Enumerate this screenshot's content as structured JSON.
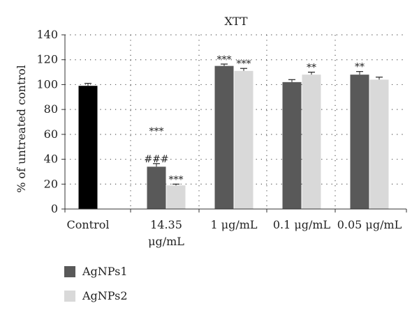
{
  "chart_data": {
    "type": "bar",
    "title": "XTT",
    "xlabel": "",
    "ylabel": "% of untreated control",
    "ylim": [
      0,
      140
    ],
    "yticks": [
      0,
      20,
      40,
      60,
      80,
      100,
      120,
      140
    ],
    "grid": true,
    "legend_position": "bottom-left",
    "categories": [
      "Control",
      "14.35 μg/mL",
      "1 μg/mL",
      "0.1 μg/mL",
      "0.05 μg/mL"
    ],
    "category_label_lines": [
      [
        "Control"
      ],
      [
        "14.35",
        "μg/mL"
      ],
      [
        "1 μg/mL"
      ],
      [
        "0.1 μg/mL"
      ],
      [
        "0.05 μg/mL"
      ]
    ],
    "control": {
      "value": 99,
      "error": 2,
      "color": "#000000"
    },
    "series": [
      {
        "name": "AgNPs1",
        "color": "#595959",
        "values": [
          null,
          34,
          115,
          102,
          108
        ],
        "errors": [
          null,
          2.5,
          1.5,
          2,
          2.5
        ],
        "annotations": [
          null,
          "###",
          "***",
          "",
          "**"
        ]
      },
      {
        "name": "AgNPs2",
        "color": "#d9d9d9",
        "values": [
          null,
          19,
          111,
          108,
          104
        ],
        "errors": [
          null,
          1,
          2,
          2,
          2
        ],
        "annotations": [
          null,
          "***",
          "***",
          "**",
          ""
        ]
      }
    ],
    "extra_annotations": [
      {
        "category": "14.35 μg/mL",
        "series": "AgNPs1",
        "text": "***",
        "y": 60
      }
    ]
  }
}
